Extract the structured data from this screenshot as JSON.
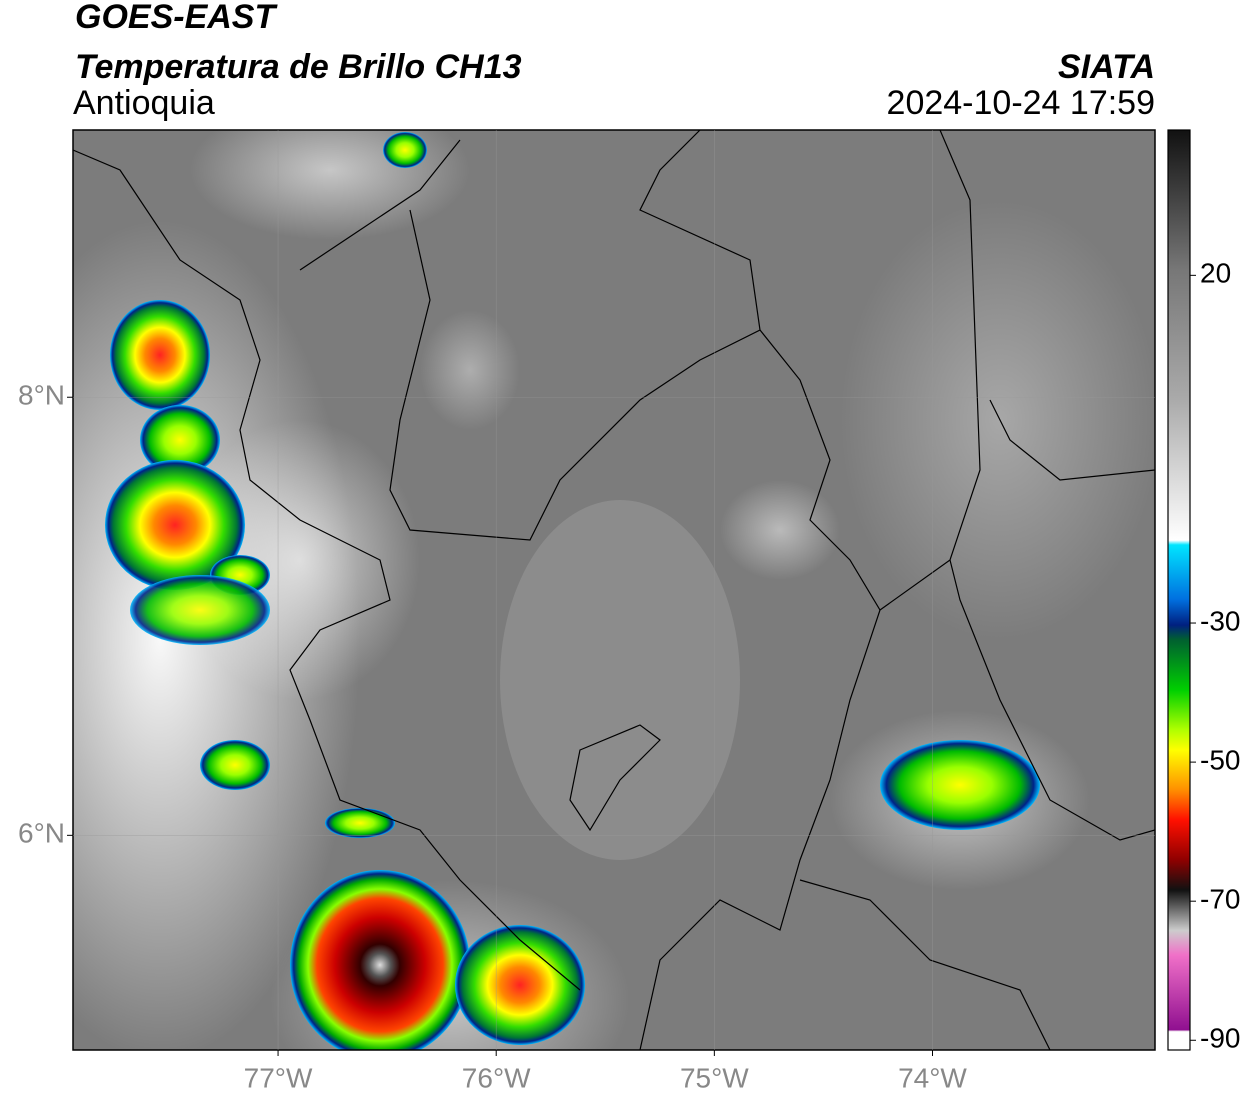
{
  "header": {
    "line1": "GOES-EAST",
    "line2": "Temperatura de Brillo CH13",
    "line3": "Antioquia",
    "source": "SIATA",
    "datetime": "2024-10-24 17:59"
  },
  "map": {
    "xlim": [
      -77.94,
      -72.98
    ],
    "ylim": [
      5.02,
      9.22
    ],
    "xticks": [
      {
        "value": -77,
        "label": "77°W"
      },
      {
        "value": -76,
        "label": "76°W"
      },
      {
        "value": -75,
        "label": "75°W"
      },
      {
        "value": -74,
        "label": "74°W"
      }
    ],
    "yticks": [
      {
        "value": 8,
        "label": "8°N"
      },
      {
        "value": 6,
        "label": "6°N"
      }
    ]
  },
  "colorbar": {
    "range": [
      -91.4,
      40.9
    ],
    "ticks": [
      20,
      -30,
      -50,
      -70,
      -90
    ]
  }
}
